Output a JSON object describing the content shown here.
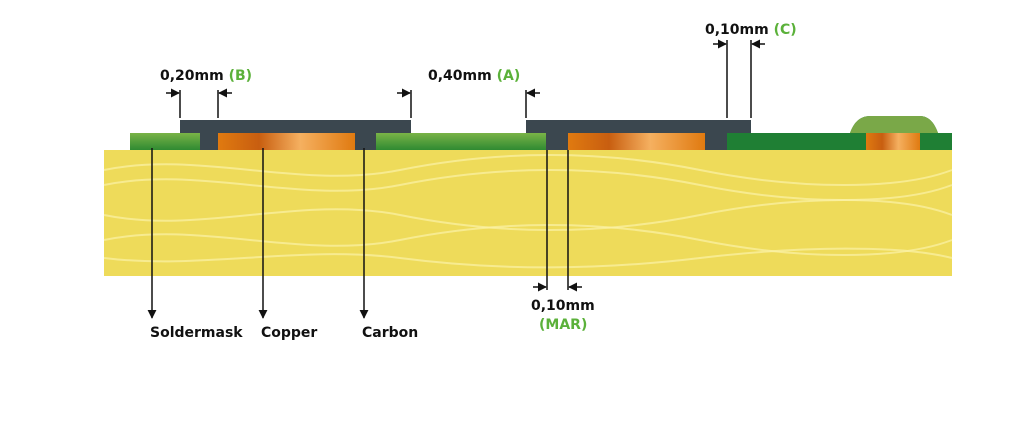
{
  "dimensions": [
    {
      "value": "0,20mm",
      "tag": "(B)"
    },
    {
      "value": "0,40mm",
      "tag": "(A)"
    },
    {
      "value": "0,10mm",
      "tag": "(C)"
    },
    {
      "value": "0,10mm",
      "tag": "(MAR)"
    }
  ],
  "layers": [
    "Soldermask",
    "Copper",
    "Carbon"
  ]
}
